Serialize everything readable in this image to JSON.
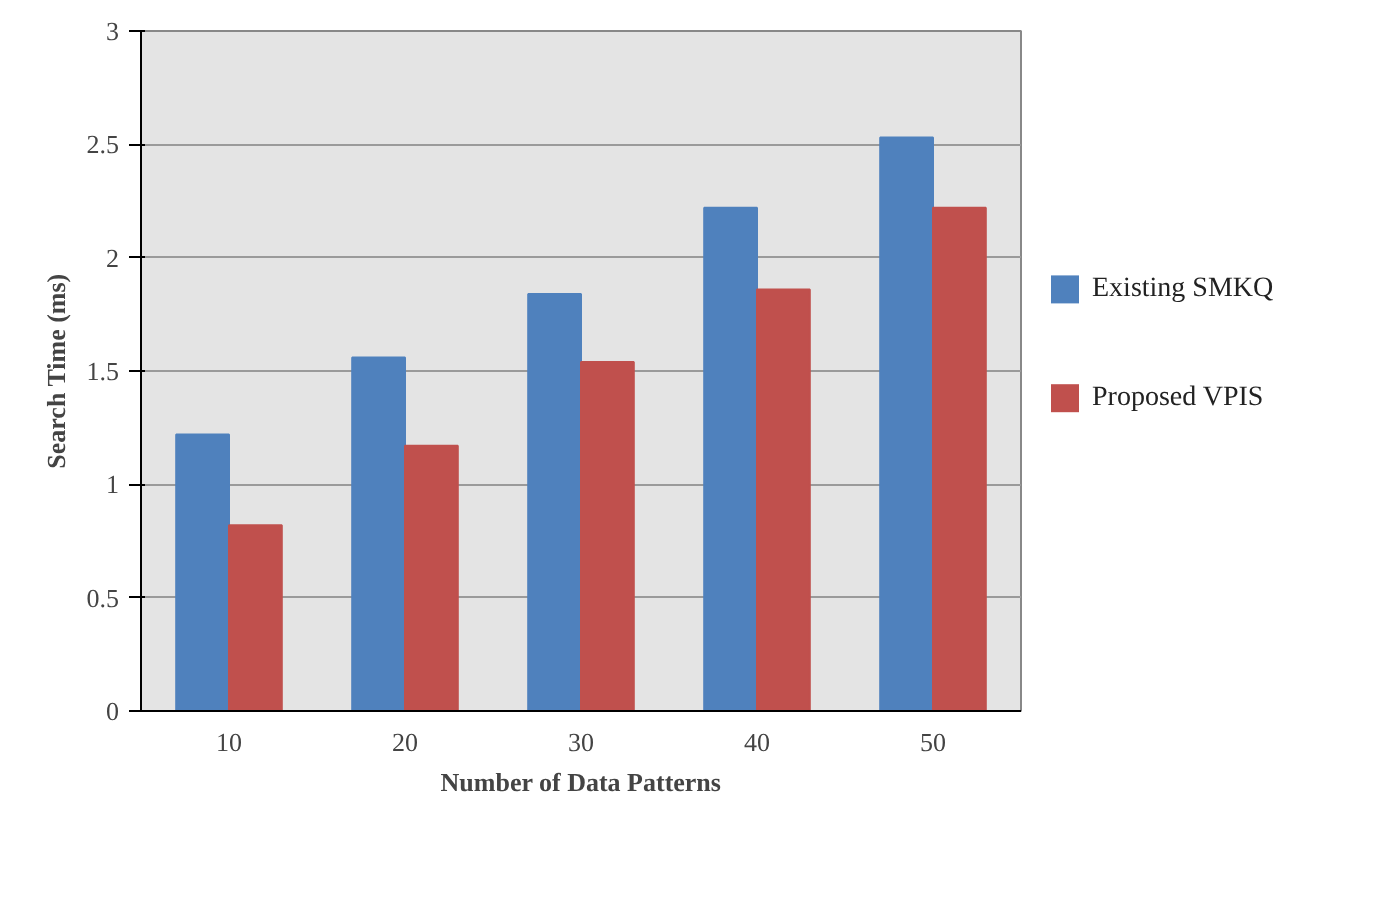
{
  "chart_data": {
    "type": "bar",
    "xlabel": "Number of Data Patterns",
    "ylabel": "Search Time (ms)",
    "categories": [
      "10",
      "20",
      "30",
      "40",
      "50"
    ],
    "series": [
      {
        "name": "Existing SMKQ",
        "color": "#4f81bd",
        "values": [
          1.22,
          1.56,
          1.84,
          2.22,
          2.53
        ]
      },
      {
        "name": "Proposed VPIS",
        "color": "#c0504d",
        "values": [
          0.82,
          1.17,
          1.54,
          1.86,
          2.22
        ]
      }
    ],
    "ylim": [
      0,
      3
    ],
    "yticks": [
      0,
      0.5,
      1,
      1.5,
      2,
      2.5,
      3
    ],
    "grid": "y",
    "legend": "right"
  }
}
